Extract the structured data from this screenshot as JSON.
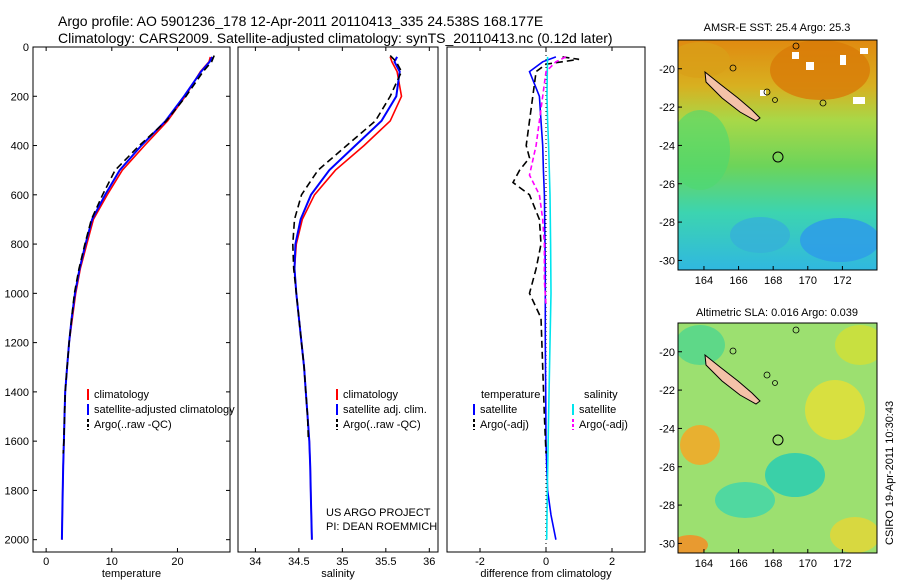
{
  "header": {
    "line1": "Argo profile: AO 5901236_178 12-Apr-2011 20110413_335 24.538S 168.177E",
    "line2": "Climatology: CARS2009. Satellite-adjusted climatology: synTS_20110413.nc (0.12d later)"
  },
  "credits": {
    "project": "US ARGO PROJECT",
    "pi": "PI: DEAN ROEMMICH",
    "stamp": "CSIRO 19-Apr-2011 10:30:43"
  },
  "colors": {
    "climatology": "#ff0000",
    "satellite": "#0000ff",
    "argo": "#000000",
    "sat_diff_salinity": "#00e5ee",
    "argo_adj_salinity": "#ff00ff"
  },
  "chart_data": [
    {
      "type": "line",
      "xlabel": "temperature",
      "ylabel": "",
      "xlim": [
        -2,
        28
      ],
      "ylim": [
        2050,
        0
      ],
      "xticks": [
        0,
        10,
        20
      ],
      "yticks": [
        0,
        200,
        400,
        600,
        800,
        1000,
        1200,
        1400,
        1600,
        1800,
        2000
      ],
      "legend_position": "center-bottom",
      "legend": [
        "climatology",
        "satellite-adjusted climatology",
        "Argo(..raw -QC)"
      ],
      "series": [
        {
          "name": "climatology",
          "x": [
            25.0,
            24.8,
            23.5,
            21.2,
            18.5,
            15.0,
            11.6,
            9.3,
            7.2,
            6.2,
            5.2,
            4.5,
            4.0,
            3.5,
            3.2,
            2.9,
            2.8,
            2.7,
            2.6,
            2.5,
            2.4
          ],
          "y": [
            40,
            60,
            100,
            200,
            300,
            400,
            500,
            600,
            700,
            800,
            900,
            1000,
            1100,
            1200,
            1300,
            1400,
            1500,
            1600,
            1700,
            1850,
            2000
          ]
        },
        {
          "name": "satellite-adjusted climatology",
          "x": [
            25.3,
            24.9,
            23.6,
            21.0,
            18.2,
            14.5,
            11.2,
            9.0,
            7.0,
            6.0,
            5.1,
            4.4,
            3.9,
            3.5,
            3.2,
            2.9,
            2.8,
            2.7,
            2.6,
            2.5,
            2.4
          ],
          "y": [
            40,
            60,
            100,
            200,
            300,
            400,
            500,
            600,
            700,
            800,
            900,
            1000,
            1100,
            1200,
            1300,
            1400,
            1500,
            1600,
            1700,
            1850,
            2000
          ]
        },
        {
          "name": "Argo(..raw -QC)",
          "x": [
            25.6,
            25.2,
            23.9,
            21.3,
            18.3,
            14.2,
            10.5,
            8.6,
            6.9,
            5.9,
            5.0,
            4.3,
            3.9,
            3.5,
            3.2,
            2.9,
            2.8,
            2.7,
            2.6
          ],
          "y": [
            35,
            60,
            100,
            200,
            300,
            400,
            500,
            600,
            700,
            800,
            900,
            1000,
            1100,
            1200,
            1300,
            1400,
            1500,
            1600,
            1650
          ]
        }
      ]
    },
    {
      "type": "line",
      "xlabel": "salinity",
      "ylabel": "",
      "xlim": [
        33.8,
        36.1
      ],
      "ylim": [
        2050,
        0
      ],
      "xticks": [
        34,
        34.5,
        35,
        35.5,
        36
      ],
      "yticks": [],
      "legend_position": "center-bottom",
      "legend": [
        "climatology",
        "satellite adj. clim.",
        "Argo(..raw -QC)"
      ],
      "series": [
        {
          "name": "climatology",
          "x": [
            35.55,
            35.57,
            35.63,
            35.68,
            35.55,
            35.25,
            34.92,
            34.68,
            34.54,
            34.47,
            34.45,
            34.47,
            34.5,
            34.53,
            34.56,
            34.58,
            34.6,
            34.62,
            34.63,
            34.64,
            34.65
          ],
          "y": [
            40,
            60,
            100,
            200,
            300,
            400,
            500,
            600,
            700,
            800,
            900,
            1000,
            1100,
            1200,
            1300,
            1400,
            1500,
            1600,
            1700,
            1850,
            2000
          ]
        },
        {
          "name": "satellite adj. clim.",
          "x": [
            35.63,
            35.6,
            35.66,
            35.62,
            35.45,
            35.15,
            34.85,
            34.64,
            34.52,
            34.46,
            34.45,
            34.47,
            34.5,
            34.53,
            34.56,
            34.58,
            34.6,
            34.62,
            34.63,
            34.64,
            34.65
          ],
          "y": [
            40,
            60,
            100,
            200,
            300,
            400,
            500,
            600,
            700,
            800,
            900,
            1000,
            1100,
            1200,
            1300,
            1400,
            1500,
            1600,
            1700,
            1850,
            2000
          ]
        },
        {
          "name": "Argo(..raw -QC)",
          "x": [
            35.55,
            35.62,
            35.68,
            35.55,
            35.38,
            35.05,
            34.72,
            34.53,
            34.45,
            34.43,
            34.44,
            34.47,
            34.5,
            34.53,
            34.56,
            34.58,
            34.6,
            34.61
          ],
          "y": [
            35,
            60,
            100,
            200,
            300,
            400,
            500,
            600,
            700,
            800,
            900,
            1000,
            1100,
            1200,
            1300,
            1400,
            1500,
            1600
          ]
        }
      ]
    },
    {
      "type": "line",
      "xlabel": "difference from climatology",
      "ylabel": "",
      "xlim": [
        -3,
        3
      ],
      "ylim": [
        2050,
        0
      ],
      "xticks": [
        -2,
        0,
        2
      ],
      "yticks": [],
      "legend_position": "center-bottom",
      "legend_titles": [
        "temperature",
        "salinity"
      ],
      "legend": [
        "satellite",
        "Argo(-adj)",
        "satellite",
        "Argo(-adj)"
      ],
      "series": [
        {
          "name": "satellite",
          "x": [
            0.3,
            -0.1,
            -0.5,
            -0.35,
            -0.2,
            -0.15,
            -0.1,
            -0.08,
            -0.05,
            -0.04,
            -0.03,
            -0.02,
            -0.02,
            -0.02,
            -0.02,
            -0.01,
            0.0,
            0.02,
            0.05,
            0.1,
            0.15,
            0.3
          ],
          "y": [
            40,
            60,
            100,
            150,
            200,
            300,
            400,
            500,
            600,
            700,
            800,
            900,
            1000,
            1100,
            1200,
            1400,
            1600,
            1700,
            1800,
            1850,
            1900,
            2000
          ]
        },
        {
          "name": "Argo(-adj)",
          "x": [
            0.5,
            1.0,
            0.0,
            -0.3,
            -0.4,
            -0.5,
            -0.6,
            -0.5,
            -0.8,
            -1.0,
            -0.5,
            -0.2,
            -0.15,
            -0.3,
            -0.5,
            -0.15,
            -0.1,
            -0.05,
            0.0
          ],
          "y": [
            40,
            50,
            70,
            100,
            200,
            300,
            400,
            450,
            500,
            550,
            600,
            700,
            800,
            900,
            1000,
            1100,
            1300,
            1500,
            1650
          ]
        },
        {
          "name": "satellite",
          "x": [
            0.05,
            0.04,
            0.03,
            0.05,
            0.08,
            0.1,
            0.12,
            0.14,
            0.15,
            0.12,
            0.08,
            0.04,
            0.02
          ],
          "y": [
            40,
            100,
            200,
            300,
            400,
            500,
            600,
            800,
            1000,
            1200,
            1500,
            1800,
            2000
          ]
        },
        {
          "name": "Argo(-adj)",
          "x": [
            0.6,
            0.3,
            0.0,
            -0.3,
            -0.5,
            -0.35,
            -0.2,
            -0.1,
            -0.05,
            -0.05,
            0.0
          ],
          "y": [
            40,
            60,
            100,
            400,
            520,
            560,
            600,
            700,
            800,
            950,
            1050
          ]
        }
      ]
    },
    {
      "type": "heatmap",
      "title": "AMSR-E SST: 25.4 Argo: 25.3",
      "xlim": [
        162.5,
        174
      ],
      "ylim": [
        -30.5,
        -18.5
      ],
      "xticks": [
        164,
        166,
        168,
        170,
        172
      ],
      "yticks": [
        -20,
        -22,
        -24,
        -26,
        -28,
        -30
      ],
      "argo_position": {
        "lon": 168.177,
        "lat": -24.538
      }
    },
    {
      "type": "heatmap",
      "title": "Altimetric SLA: 0.016 Argo: 0.039",
      "xlim": [
        162.5,
        174
      ],
      "ylim": [
        -30.5,
        -18.5
      ],
      "xticks": [
        164,
        166,
        168,
        170,
        172
      ],
      "yticks": [
        -20,
        -22,
        -24,
        -26,
        -28,
        -30
      ],
      "argo_position": {
        "lon": 168.177,
        "lat": -24.538
      }
    }
  ]
}
